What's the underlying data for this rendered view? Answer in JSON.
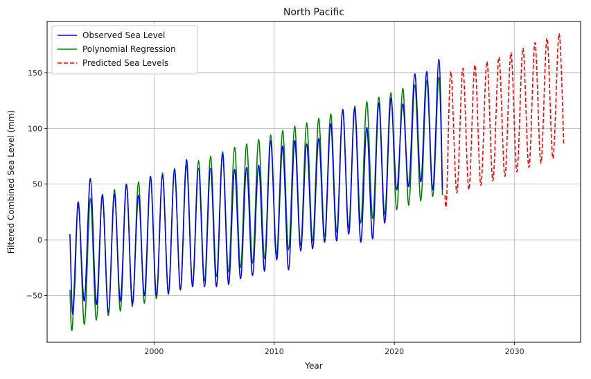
{
  "chart_data": {
    "type": "line",
    "title": "North Pacific",
    "xlabel": "Year",
    "ylabel": "Filtered Combined Sea Level (mm)",
    "xlim": [
      1991.1,
      2035.5
    ],
    "ylim": [
      -92,
      196
    ],
    "xticks": [
      2000,
      2010,
      2020,
      2030
    ],
    "yticks": [
      -50,
      0,
      50,
      100,
      150
    ],
    "grid": true,
    "legend_position": "top-left",
    "series": [
      {
        "name": "Observed Sea Level",
        "color": "#0000ff",
        "dashed": false,
        "x": [
          1993.0,
          1993.2,
          1993.4,
          1993.7,
          1994.2,
          1994.7,
          1995.2,
          1995.7,
          1996.2,
          1996.7,
          1997.2,
          1997.7,
          1998.2,
          1998.7,
          1999.2,
          1999.7,
          2000.2,
          2000.7,
          2001.2,
          2001.7,
          2002.2,
          2002.7,
          2003.2,
          2003.7,
          2004.2,
          2004.7,
          2005.2,
          2005.7,
          2006.2,
          2006.7,
          2007.2,
          2007.7,
          2008.2,
          2008.7,
          2009.2,
          2009.7,
          2010.2,
          2010.7,
          2011.2,
          2011.7,
          2012.2,
          2012.7,
          2013.2,
          2013.7,
          2014.2,
          2014.7,
          2015.2,
          2015.7,
          2016.2,
          2016.7,
          2017.2,
          2017.7,
          2018.2,
          2018.7,
          2019.2,
          2019.7,
          2020.2,
          2020.7,
          2021.2,
          2021.7,
          2022.2,
          2022.7,
          2023.2,
          2023.7,
          2024.0
        ],
        "y": [
          5,
          -65,
          -40,
          34,
          -55,
          55,
          -58,
          40,
          -65,
          41,
          -55,
          50,
          -57,
          40,
          -50,
          57,
          -50,
          58,
          -48,
          63,
          -45,
          72,
          -42,
          64,
          -42,
          64,
          -42,
          77,
          -40,
          63,
          -35,
          65,
          -32,
          67,
          -28,
          89,
          -18,
          84,
          -27,
          89,
          -10,
          86,
          -8,
          91,
          -2,
          104,
          -1,
          117,
          5,
          118,
          -2,
          101,
          1,
          123,
          15,
          127,
          45,
          122,
          48,
          149,
          52,
          151,
          45,
          162,
          45
        ]
      },
      {
        "name": "Polynomial Regression",
        "color": "#008000",
        "dashed": false,
        "x": [
          1993.0,
          1993.2,
          1993.7,
          1994.2,
          1994.7,
          1995.2,
          1995.7,
          1996.2,
          1996.7,
          1997.2,
          1997.7,
          1998.2,
          1998.7,
          1999.2,
          1999.7,
          2000.2,
          2000.7,
          2001.2,
          2001.7,
          2002.2,
          2002.7,
          2003.2,
          2003.7,
          2004.2,
          2004.7,
          2005.2,
          2005.7,
          2006.2,
          2006.7,
          2007.2,
          2007.7,
          2008.2,
          2008.7,
          2009.2,
          2009.7,
          2010.2,
          2010.7,
          2011.2,
          2011.7,
          2012.2,
          2012.7,
          2013.2,
          2013.7,
          2014.2,
          2014.7,
          2015.2,
          2015.7,
          2016.2,
          2016.7,
          2017.2,
          2017.7,
          2018.2,
          2018.7,
          2019.2,
          2019.7,
          2020.2,
          2020.7,
          2021.2,
          2021.7,
          2022.2,
          2022.7,
          2023.2,
          2023.7,
          2024.0
        ],
        "y": [
          -45,
          -79,
          32,
          -76,
          37,
          -72,
          41,
          -68,
          45,
          -64,
          49,
          -60,
          52,
          -57,
          56,
          -53,
          60,
          -49,
          64,
          -45,
          67,
          -41,
          71,
          -37,
          75,
          -33,
          79,
          -29,
          83,
          -25,
          86,
          -21,
          90,
          -17,
          94,
          -13,
          98,
          -9,
          102,
          -5,
          105,
          -1,
          109,
          3,
          113,
          7,
          117,
          11,
          120,
          15,
          124,
          19,
          128,
          23,
          132,
          27,
          136,
          31,
          139,
          35,
          143,
          39,
          146,
          40
        ]
      },
      {
        "name": "Predicted Sea Levels",
        "color": "#ff0000",
        "dashed": true,
        "x": [
          2024.2,
          2024.35,
          2024.7,
          2025.2,
          2025.7,
          2026.2,
          2026.7,
          2027.2,
          2027.7,
          2028.2,
          2028.7,
          2029.2,
          2029.7,
          2030.2,
          2030.7,
          2031.2,
          2031.7,
          2032.2,
          2032.7,
          2033.2,
          2033.7,
          2034.1
        ],
        "y": [
          40,
          37,
          151,
          42,
          154,
          45,
          157,
          49,
          160,
          53,
          164,
          57,
          168,
          61,
          172,
          65,
          177,
          69,
          181,
          73,
          185,
          85
        ]
      }
    ]
  }
}
